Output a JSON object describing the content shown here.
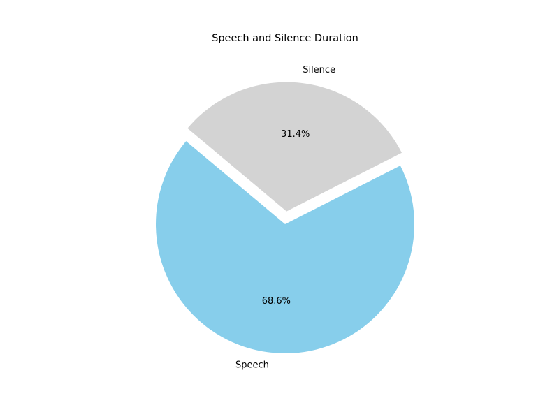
{
  "chart_data": {
    "type": "pie",
    "title": "Speech and Silence Duration",
    "labels": [
      "Speech",
      "Silence"
    ],
    "values": [
      68.6,
      31.4
    ],
    "percent_labels": [
      "68.6%",
      "31.4%"
    ],
    "colors": [
      "#87CEEB",
      "#D3D3D3"
    ],
    "explode": [
      0,
      0.1
    ],
    "start_angle": 140,
    "legend": "none"
  }
}
